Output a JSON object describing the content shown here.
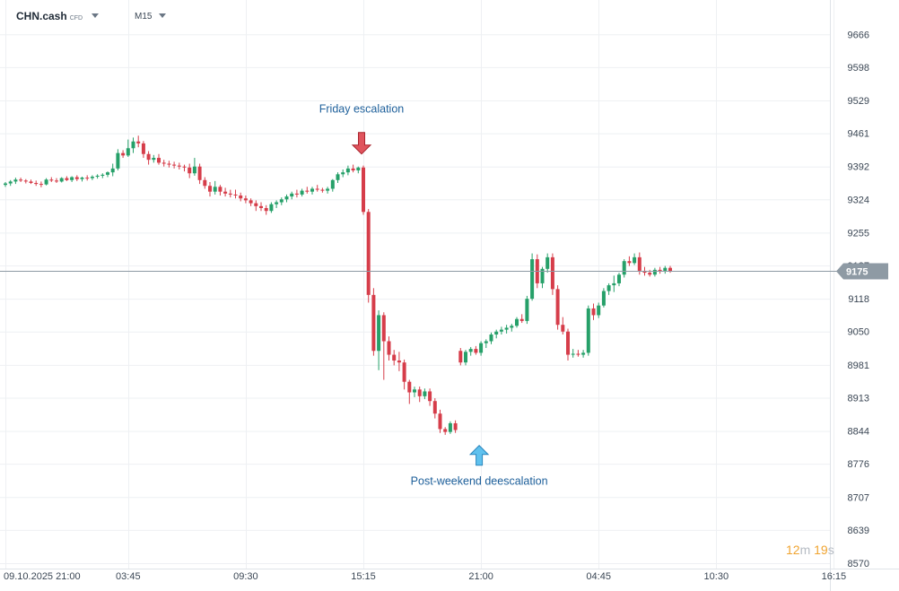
{
  "header": {
    "symbol": "CHN.cash",
    "instrument_type": "CFD",
    "timeframe": "M15"
  },
  "countdown": {
    "minutes": "12",
    "minutes_unit": "m",
    "seconds": "19",
    "seconds_unit": "s"
  },
  "colors": {
    "up": "#26a069",
    "down": "#d63d4a",
    "grid": "#eef0f3",
    "price_line": "#8e9aa4",
    "price_tag": "#8e9aa4",
    "annotation_text": "#1d5f9a"
  },
  "chart_data": {
    "type": "candlestick",
    "title": "",
    "xlabel": "",
    "ylabel": "",
    "ylim": [
      8570,
      9700
    ],
    "y_ticks": [
      9666,
      9598,
      9529,
      9461,
      9392,
      9324,
      9255,
      9187,
      9118,
      9050,
      8981,
      8913,
      8844,
      8776,
      8707,
      8639,
      8570
    ],
    "x_ticks": [
      {
        "label": "09.10.2025  21:00",
        "bar": 0
      },
      {
        "label": "03:45",
        "bar": 24
      },
      {
        "label": "09:30",
        "bar": 47
      },
      {
        "label": "15:15",
        "bar": 70
      },
      {
        "label": "21:00",
        "bar": 93
      },
      {
        "label": "04:45",
        "bar": 116
      },
      {
        "label": "10:30",
        "bar": 139
      },
      {
        "label": "16:15",
        "bar": 162
      }
    ],
    "last_price": 9175,
    "grid": true,
    "candles": [
      [
        9354,
        9360,
        9350,
        9357
      ],
      [
        9357,
        9364,
        9352,
        9361
      ],
      [
        9361,
        9369,
        9356,
        9365
      ],
      [
        9365,
        9369,
        9360,
        9363
      ],
      [
        9363,
        9366,
        9357,
        9361
      ],
      [
        9361,
        9365,
        9356,
        9358
      ],
      [
        9358,
        9363,
        9352,
        9356
      ],
      [
        9356,
        9361,
        9349,
        9355
      ],
      [
        9355,
        9368,
        9353,
        9365
      ],
      [
        9365,
        9370,
        9360,
        9363
      ],
      [
        9363,
        9368,
        9358,
        9361
      ],
      [
        9361,
        9370,
        9359,
        9368
      ],
      [
        9368,
        9372,
        9362,
        9364
      ],
      [
        9364,
        9372,
        9360,
        9370
      ],
      [
        9370,
        9374,
        9362,
        9366
      ],
      [
        9366,
        9371,
        9361,
        9369
      ],
      [
        9369,
        9374,
        9363,
        9368
      ],
      [
        9368,
        9374,
        9364,
        9371
      ],
      [
        9371,
        9376,
        9367,
        9373
      ],
      [
        9373,
        9378,
        9368,
        9375
      ],
      [
        9375,
        9382,
        9370,
        9380
      ],
      [
        9380,
        9398,
        9372,
        9388
      ],
      [
        9388,
        9428,
        9384,
        9420
      ],
      [
        9420,
        9426,
        9410,
        9415
      ],
      [
        9415,
        9448,
        9412,
        9430
      ],
      [
        9430,
        9452,
        9420,
        9444
      ],
      [
        9444,
        9456,
        9432,
        9440
      ],
      [
        9440,
        9445,
        9410,
        9418
      ],
      [
        9418,
        9424,
        9396,
        9406
      ],
      [
        9406,
        9416,
        9400,
        9410
      ],
      [
        9410,
        9418,
        9396,
        9400
      ],
      [
        9400,
        9406,
        9392,
        9398
      ],
      [
        9398,
        9404,
        9390,
        9396
      ],
      [
        9396,
        9402,
        9388,
        9394
      ],
      [
        9394,
        9400,
        9386,
        9392
      ],
      [
        9392,
        9396,
        9382,
        9390
      ],
      [
        9390,
        9398,
        9368,
        9378
      ],
      [
        9378,
        9410,
        9373,
        9392
      ],
      [
        9392,
        9398,
        9356,
        9364
      ],
      [
        9364,
        9370,
        9346,
        9352
      ],
      [
        9352,
        9360,
        9330,
        9340
      ],
      [
        9340,
        9362,
        9334,
        9350
      ],
      [
        9350,
        9354,
        9332,
        9340
      ],
      [
        9340,
        9348,
        9330,
        9336
      ],
      [
        9336,
        9344,
        9328,
        9334
      ],
      [
        9334,
        9344,
        9326,
        9332
      ],
      [
        9332,
        9338,
        9320,
        9326
      ],
      [
        9326,
        9332,
        9316,
        9322
      ],
      [
        9322,
        9326,
        9310,
        9316
      ],
      [
        9316,
        9322,
        9300,
        9310
      ],
      [
        9310,
        9318,
        9300,
        9306
      ],
      [
        9306,
        9312,
        9292,
        9300
      ],
      [
        9300,
        9318,
        9296,
        9314
      ],
      [
        9314,
        9322,
        9306,
        9318
      ],
      [
        9318,
        9328,
        9312,
        9324
      ],
      [
        9324,
        9334,
        9318,
        9330
      ],
      [
        9330,
        9340,
        9324,
        9336
      ],
      [
        9336,
        9344,
        9328,
        9334
      ],
      [
        9334,
        9346,
        9330,
        9342
      ],
      [
        9342,
        9350,
        9336,
        9340
      ],
      [
        9340,
        9350,
        9334,
        9346
      ],
      [
        9346,
        9354,
        9340,
        9344
      ],
      [
        9344,
        9348,
        9338,
        9342
      ],
      [
        9342,
        9350,
        9336,
        9346
      ],
      [
        9346,
        9366,
        9340,
        9364
      ],
      [
        9364,
        9380,
        9358,
        9376
      ],
      [
        9376,
        9386,
        9370,
        9380
      ],
      [
        9380,
        9394,
        9374,
        9388
      ],
      [
        9388,
        9396,
        9380,
        9384
      ],
      [
        9384,
        9392,
        9378,
        9390
      ],
      [
        9390,
        9394,
        9292,
        9298
      ],
      [
        9298,
        9304,
        9110,
        9126
      ],
      [
        9126,
        9140,
        9000,
        9010
      ],
      [
        9010,
        9094,
        8970,
        9084
      ],
      [
        9084,
        9090,
        8950,
        9030
      ],
      [
        9030,
        9040,
        8990,
        9002
      ],
      [
        9002,
        9012,
        8980,
        8990
      ],
      [
        8990,
        9008,
        8968,
        8986
      ],
      [
        8986,
        8992,
        8930,
        8946
      ],
      [
        8946,
        8950,
        8900,
        8924
      ],
      [
        8924,
        8936,
        8914,
        8930
      ],
      [
        8930,
        8936,
        8904,
        8916
      ],
      [
        8916,
        8932,
        8910,
        8926
      ],
      [
        8926,
        8932,
        8896,
        8906
      ],
      [
        8906,
        8912,
        8870,
        8880
      ],
      [
        8880,
        8888,
        8840,
        8848
      ],
      [
        8848,
        8852,
        8836,
        8842
      ],
      [
        8842,
        8864,
        8838,
        8860
      ],
      [
        8860,
        8866,
        8840,
        8846
      ],
      [
        9010,
        9016,
        8980,
        8986
      ],
      [
        8986,
        9012,
        8980,
        9008
      ],
      [
        9008,
        9018,
        9000,
        9014
      ],
      [
        9014,
        9020,
        9002,
        9006
      ],
      [
        9006,
        9030,
        9000,
        9026
      ],
      [
        9026,
        9034,
        9016,
        9030
      ],
      [
        9030,
        9048,
        9024,
        9044
      ],
      [
        9044,
        9054,
        9036,
        9050
      ],
      [
        9050,
        9060,
        9044,
        9054
      ],
      [
        9054,
        9064,
        9046,
        9058
      ],
      [
        9058,
        9066,
        9050,
        9062
      ],
      [
        9062,
        9080,
        9058,
        9076
      ],
      [
        9076,
        9086,
        9068,
        9072
      ],
      [
        9072,
        9124,
        9066,
        9118
      ],
      [
        9118,
        9212,
        9114,
        9200
      ],
      [
        9200,
        9210,
        9140,
        9150
      ],
      [
        9150,
        9184,
        9140,
        9180
      ],
      [
        9180,
        9212,
        9172,
        9204
      ],
      [
        9204,
        9212,
        9126,
        9138
      ],
      [
        9138,
        9146,
        9054,
        9064
      ],
      [
        9064,
        9080,
        9044,
        9050
      ],
      [
        9050,
        9056,
        8990,
        9002
      ],
      [
        9002,
        9014,
        8996,
        9004
      ],
      [
        9004,
        9012,
        8998,
        9002
      ],
      [
        9002,
        9012,
        8996,
        9006
      ],
      [
        9006,
        9104,
        9000,
        9098
      ],
      [
        9098,
        9108,
        9074,
        9084
      ],
      [
        9084,
        9110,
        9078,
        9104
      ],
      [
        9104,
        9140,
        9100,
        9134
      ],
      [
        9134,
        9150,
        9126,
        9146
      ],
      [
        9146,
        9166,
        9132,
        9150
      ],
      [
        9150,
        9172,
        9144,
        9168
      ],
      [
        9168,
        9200,
        9162,
        9196
      ],
      [
        9196,
        9206,
        9186,
        9192
      ],
      [
        9192,
        9212,
        9188,
        9204
      ],
      [
        9204,
        9214,
        9168,
        9176
      ],
      [
        9176,
        9184,
        9166,
        9172
      ],
      [
        9172,
        9178,
        9164,
        9168
      ],
      [
        9168,
        9182,
        9164,
        9178
      ],
      [
        9178,
        9184,
        9170,
        9176
      ],
      [
        9176,
        9186,
        9170,
        9182
      ],
      [
        9182,
        9186,
        9172,
        9175
      ]
    ],
    "annotations": [
      {
        "text": "Friday escalation",
        "bar": 70,
        "anchor_price": 9392,
        "direction": "down"
      },
      {
        "text": "Post-weekend deescalation",
        "bar": 93,
        "anchor_price": 8840,
        "direction": "up"
      }
    ]
  }
}
